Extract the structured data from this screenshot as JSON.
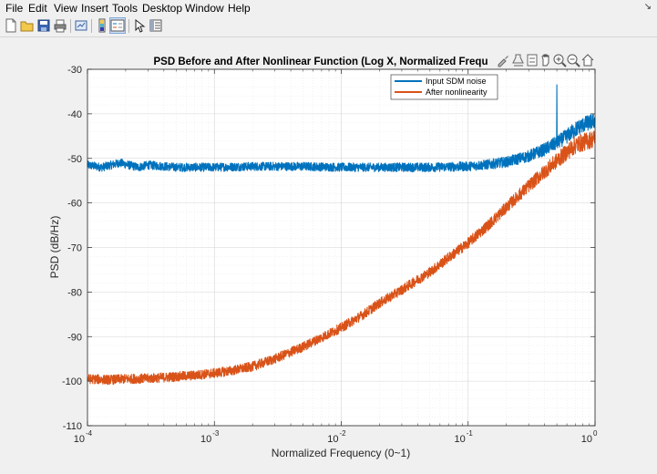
{
  "menu": {
    "items": [
      "File",
      "Edit",
      "View",
      "Insert",
      "Tools",
      "Desktop",
      "Window",
      "Help"
    ]
  },
  "toolbar": {
    "buttons": [
      "new-figure-icon",
      "open-file-icon",
      "save-icon",
      "print-icon",
      "link-plot-icon",
      "colorbar-icon",
      "legend-icon",
      "pointer-icon",
      "property-inspector-icon"
    ]
  },
  "axes_toolbar": [
    "brush-icon",
    "data-tips-icon",
    "export-icon",
    "pan-icon",
    "zoom-in-icon",
    "zoom-out-icon",
    "home-icon"
  ],
  "colors": {
    "series1": "#0072bd",
    "series2": "#d95319",
    "axes_bg": "#ffffff",
    "figure_bg": "#f0f0f0"
  },
  "chart_data": {
    "type": "line",
    "title": "PSD Before and After Nonlinear Function (Log X, Normalized Frequ",
    "xlabel": "Normalized Frequency (0~1)",
    "ylabel": "PSD (dB/Hz)",
    "xscale": "log",
    "xlim": [
      0.0001,
      1
    ],
    "ylim": [
      -110,
      -30
    ],
    "xticks": [
      0.0001,
      0.001,
      0.01,
      0.1,
      1
    ],
    "xtick_labels": [
      {
        "base": "10",
        "exp": "-4"
      },
      {
        "base": "10",
        "exp": "-3"
      },
      {
        "base": "10",
        "exp": "-2"
      },
      {
        "base": "10",
        "exp": "-1"
      },
      {
        "base": "10",
        "exp": "0"
      }
    ],
    "yticks": [
      -30,
      -40,
      -50,
      -60,
      -70,
      -80,
      -90,
      -100,
      -110
    ],
    "ytick_labels": [
      "-30",
      "-40",
      "-50",
      "-60",
      "-70",
      "-80",
      "-90",
      "-100",
      "-110"
    ],
    "grid": true,
    "minor_grid": true,
    "legend_location": "top-right",
    "series": [
      {
        "name": "Input SDM noise",
        "color": "#0072bd",
        "x": [
          0.0001,
          0.00013,
          0.00018,
          0.00025,
          0.0003,
          0.0005,
          0.001,
          0.002,
          0.005,
          0.01,
          0.02,
          0.05,
          0.1,
          0.15,
          0.2,
          0.3,
          0.4,
          0.5,
          0.6,
          0.7,
          0.8,
          1.0
        ],
        "values": [
          -51.5,
          -52,
          -51,
          -52,
          -51.5,
          -52,
          -52,
          -51.8,
          -51.8,
          -52,
          -52,
          -52,
          -51.8,
          -51.3,
          -50.8,
          -49.5,
          -48,
          -46.5,
          -45,
          -43.5,
          -42.5,
          -41.5
        ],
        "noise_db": 0.8,
        "spike": {
          "x": 0.5,
          "y": -33.5
        }
      },
      {
        "name": "After nonlinearity",
        "color": "#d95319",
        "x": [
          0.0001,
          0.00015,
          0.0002,
          0.0003,
          0.0005,
          0.0007,
          0.001,
          0.0014,
          0.002,
          0.003,
          0.005,
          0.007,
          0.01,
          0.015,
          0.02,
          0.03,
          0.05,
          0.07,
          0.1,
          0.15,
          0.2,
          0.3,
          0.5,
          0.7,
          1.0
        ],
        "values": [
          -99.5,
          -99.7,
          -99.5,
          -99.4,
          -99.0,
          -98.7,
          -98.2,
          -97.6,
          -96.7,
          -95.0,
          -92.3,
          -90.2,
          -88.0,
          -85.0,
          -82.5,
          -79.5,
          -75.5,
          -72.3,
          -69.0,
          -64.5,
          -61.0,
          -56.2,
          -50.5,
          -47.0,
          -45.5
        ],
        "noise_db": 0.9
      }
    ]
  }
}
